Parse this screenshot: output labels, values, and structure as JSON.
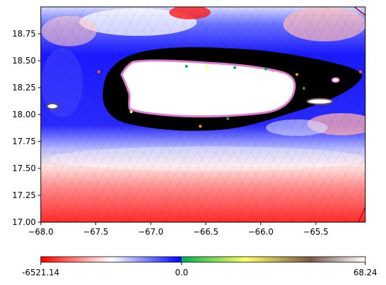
{
  "chart_data": {
    "type": "heatmap",
    "title": "",
    "xlabel": "",
    "ylabel": "",
    "xlim": [
      -68.0,
      -65.05
    ],
    "ylim": [
      17.0,
      19.0
    ],
    "x_ticks": [
      {
        "value": -68.0,
        "label": "−68.0"
      },
      {
        "value": -67.5,
        "label": "−67.5"
      },
      {
        "value": -67.0,
        "label": "−67.0"
      },
      {
        "value": -66.5,
        "label": "−66.5"
      },
      {
        "value": -66.0,
        "label": "−66.0"
      },
      {
        "value": -65.5,
        "label": "−65.5"
      }
    ],
    "y_ticks": [
      {
        "value": 17.0,
        "label": "17.00"
      },
      {
        "value": 17.25,
        "label": "17.25"
      },
      {
        "value": 17.5,
        "label": "17.50"
      },
      {
        "value": 17.75,
        "label": "17.75"
      },
      {
        "value": 18.0,
        "label": "18.00"
      },
      {
        "value": 18.25,
        "label": "18.25"
      },
      {
        "value": 18.5,
        "label": "18.50"
      },
      {
        "value": 18.75,
        "label": "18.75"
      }
    ],
    "colorbar": {
      "orientation": "horizontal",
      "min_label": "-6521.14",
      "mid_label": "0.0",
      "max_label": "68.24",
      "negative_colors": [
        "#ff0000",
        "#ffffff",
        "#0000ff"
      ],
      "positive_colors": [
        "#00b050",
        "#ffff66",
        "#7a5a48",
        "#ffffff"
      ]
    },
    "grid": false,
    "legend": "none",
    "mesh": "triangulated",
    "landmass": "Puerto Rico"
  }
}
